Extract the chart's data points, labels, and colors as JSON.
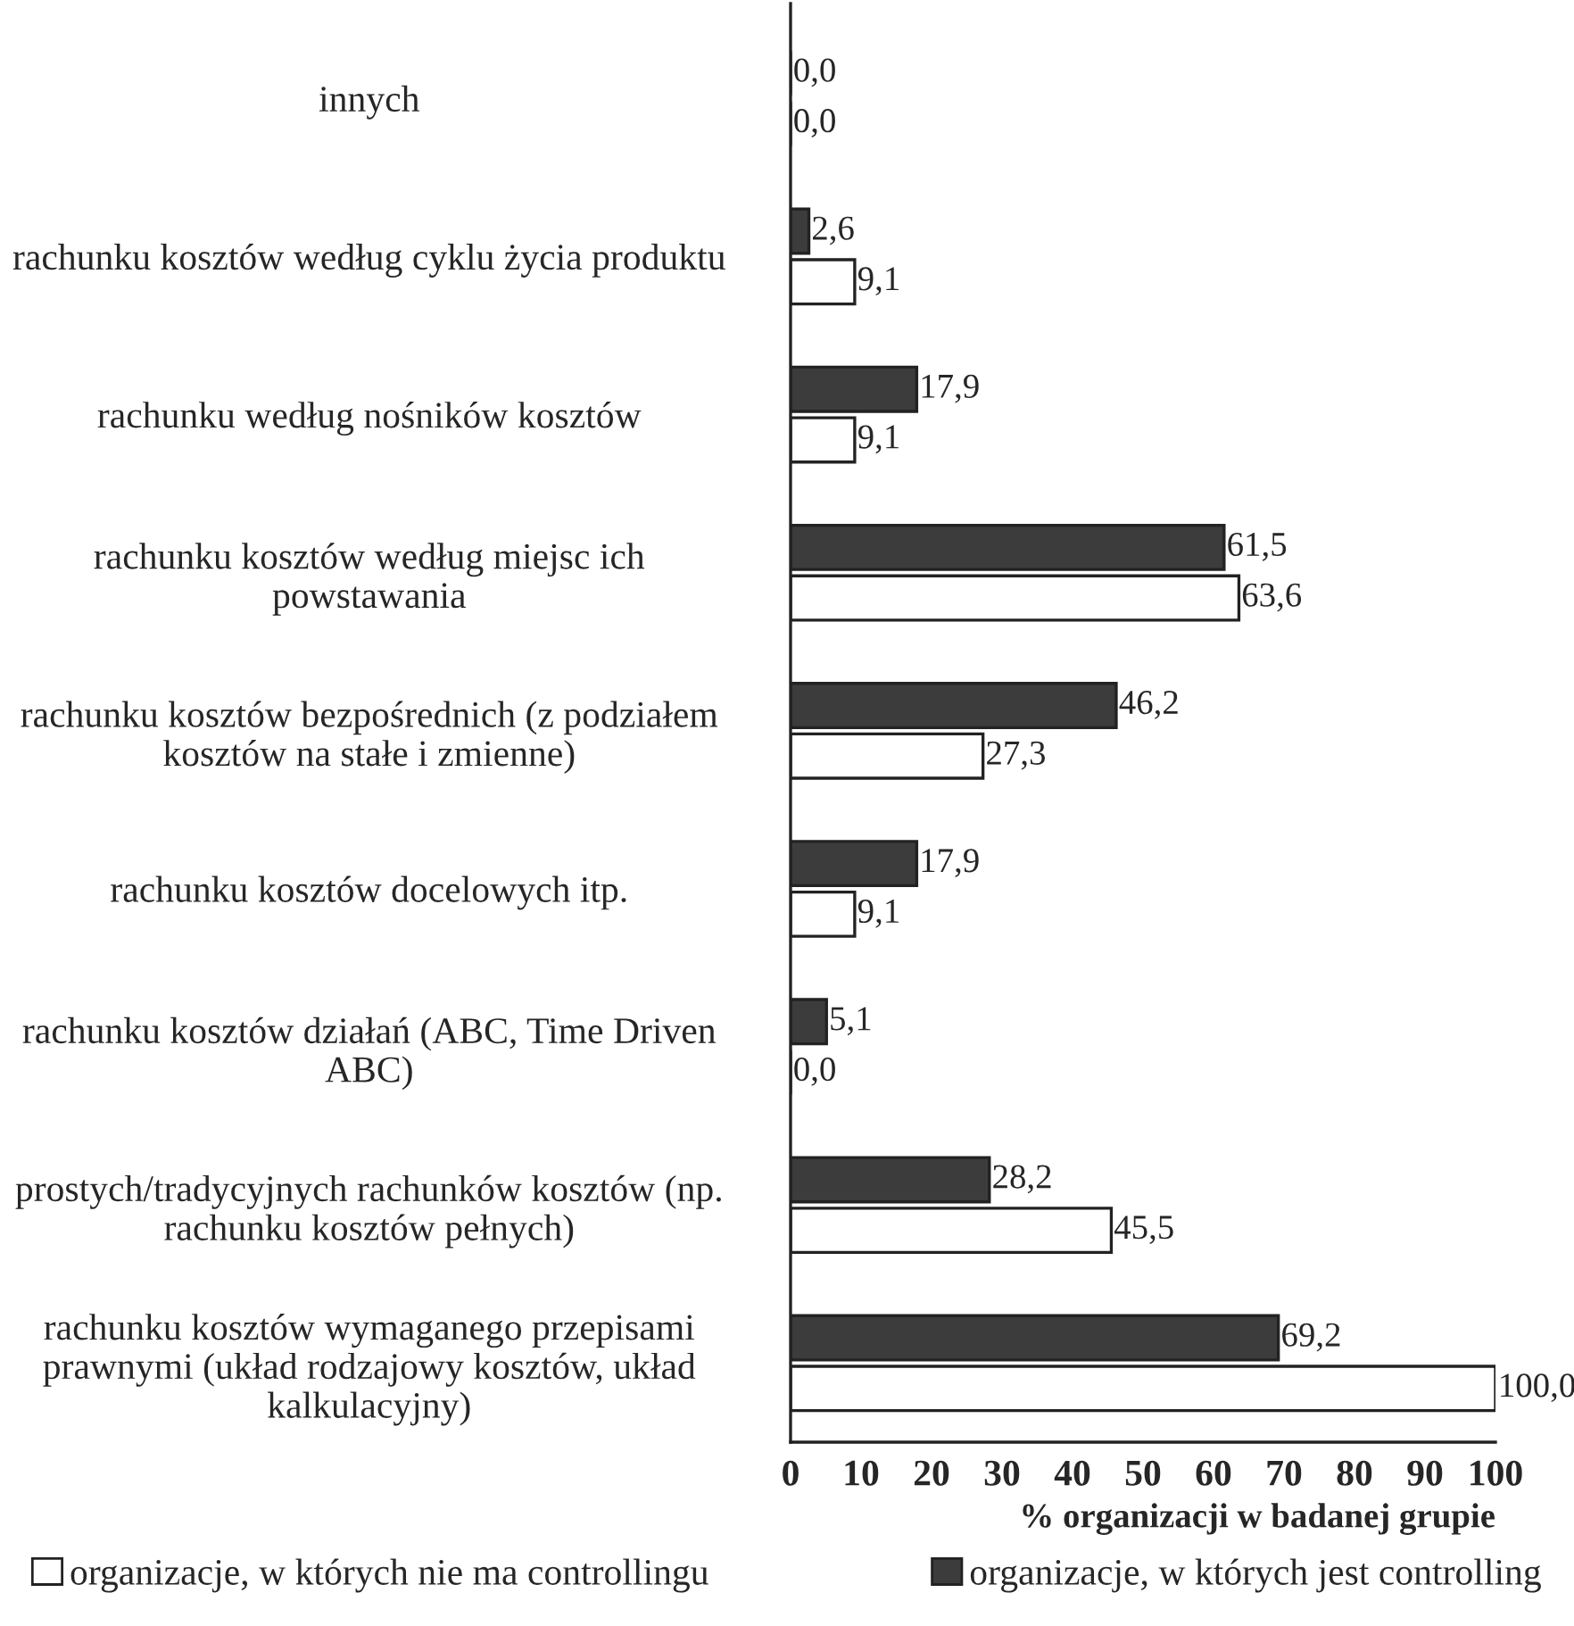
{
  "chart_data": {
    "type": "bar",
    "orientation": "horizontal",
    "xlabel": "% organizacji w badanej grupie",
    "categories": [
      "innych",
      "rachunku kosztów według cyklu życia produktu",
      "rachunku według nośników kosztów",
      "rachunku kosztów według miejsc ich\npowstawania",
      "rachunku kosztów bezpośrednich (z podziałem\nkosztów na stałe i zmienne)",
      "rachunku kosztów docelowych itp.",
      "rachunku kosztów działań (ABC, Time Driven\nABC)",
      "prostych/tradycyjnych rachunków kosztów (np.\nrachunku kosztów pełnych)",
      "rachunku kosztów wymaganego przepisami\nprawnymi (układ rodzajowy kosztów, układ\nkalkulacyjny)"
    ],
    "series": [
      {
        "name": "organizacje, w których jest controlling",
        "color": "#3c3c3c",
        "values": [
          0.0,
          2.6,
          17.9,
          61.5,
          46.2,
          17.9,
          5.1,
          28.2,
          69.2
        ],
        "value_labels": [
          "0,0",
          "2,6",
          "17,9",
          "61,5",
          "46,2",
          "17,9",
          "5,1",
          "28,2",
          "69,2"
        ]
      },
      {
        "name": "organizacje, w których nie ma controllingu",
        "color": "#ffffff",
        "values": [
          0.0,
          9.1,
          9.1,
          63.6,
          27.3,
          9.1,
          0.0,
          45.5,
          100.0
        ],
        "value_labels": [
          "0,0",
          "9,1",
          "9,1",
          "63,6",
          "27,3",
          "9,1",
          "0,0",
          "45,5",
          "100,0"
        ]
      }
    ],
    "xlim": [
      0,
      100
    ],
    "xticks": [
      0,
      10,
      20,
      30,
      40,
      50,
      60,
      70,
      80,
      90,
      100
    ],
    "grid": false,
    "legend": "bottom"
  }
}
